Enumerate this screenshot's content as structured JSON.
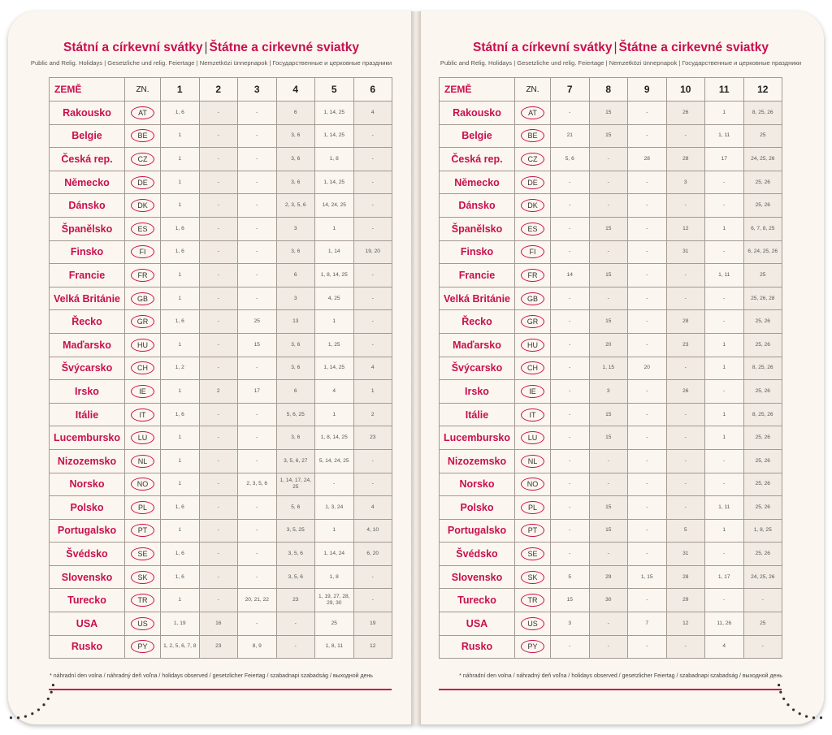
{
  "left": {
    "title_cz": "Státní a církevní svátky",
    "title_sk": "Štátne a cirkevné sviatky",
    "subtitle": "Public and Relig. Holidays | Gesetzliche und relig. Feiertage | Nemzetközi ünnepnapok | Государственные и церковные праздники",
    "header": {
      "country": "ZEMĚ",
      "code": "ZN.",
      "months": [
        "1",
        "2",
        "3",
        "4",
        "5",
        "6"
      ]
    },
    "footnote": "* náhradní den volna / náhradný deň voľna / holidays observed / gesetzlicher Feiertag / szabadnapi szabadság / выходной день"
  },
  "right": {
    "title_cz": "Státní a církevní svátky",
    "title_sk": "Štátne a cirkevné sviatky",
    "subtitle": "Public and Relig. Holidays | Gesetzliche und relig. Feiertage | Nemzetközi ünnepnapok | Государственные и церковные праздники",
    "header": {
      "country": "ZEMĚ",
      "code": "ZN.",
      "months": [
        "7",
        "8",
        "9",
        "10",
        "11",
        "12"
      ]
    },
    "footnote": "* náhradní den volna / náhradný deň voľna / holidays observed / gesetzlicher Feiertag / szabadnapi szabadság / выходной день"
  },
  "colors": {
    "accent": "#c8104f",
    "page": "#fbf6ef",
    "shade": "#f1ebe3",
    "border": "#a39a92"
  },
  "countries": [
    {
      "name": "Rakousko",
      "code": "AT",
      "m": [
        "1, 6",
        "-",
        "-",
        "6",
        "1, 14, 25",
        "4",
        "-",
        "15",
        "-",
        "26",
        "1",
        "8, 25, 26"
      ]
    },
    {
      "name": "Belgie",
      "code": "BE",
      "m": [
        "1",
        "-",
        "-",
        "3, 6",
        "1, 14, 25",
        "-",
        "21",
        "15",
        "-",
        "-",
        "1, 11",
        "25"
      ]
    },
    {
      "name": "Česká rep.",
      "code": "CZ",
      "m": [
        "1",
        "-",
        "-",
        "3, 6",
        "1, 8",
        "-",
        "5, 6",
        "-",
        "28",
        "28",
        "17",
        "24, 25, 26"
      ]
    },
    {
      "name": "Německo",
      "code": "DE",
      "m": [
        "1",
        "-",
        "-",
        "3, 6",
        "1, 14, 25",
        "-",
        "-",
        "-",
        "-",
        "3",
        "-",
        "25, 26"
      ]
    },
    {
      "name": "Dánsko",
      "code": "DK",
      "m": [
        "1",
        "-",
        "-",
        "2, 3, 5, 6",
        "14, 24, 25",
        "-",
        "-",
        "-",
        "-",
        "-",
        "-",
        "25, 26"
      ]
    },
    {
      "name": "Španělsko",
      "code": "ES",
      "m": [
        "1, 6",
        "-",
        "-",
        "3",
        "1",
        "-",
        "-",
        "15",
        "-",
        "12",
        "1",
        "6, 7, 8, 25"
      ]
    },
    {
      "name": "Finsko",
      "code": "FI",
      "m": [
        "1, 6",
        "-",
        "-",
        "3, 6",
        "1, 14",
        "19, 20",
        "-",
        "-",
        "-",
        "31",
        "-",
        "6, 24, 25, 26"
      ]
    },
    {
      "name": "Francie",
      "code": "FR",
      "m": [
        "1",
        "-",
        "-",
        "6",
        "1, 8, 14, 25",
        "-",
        "14",
        "15",
        "-",
        "-",
        "1, 11",
        "25"
      ]
    },
    {
      "name": "Velká Británie",
      "code": "GB",
      "m": [
        "1",
        "-",
        "-",
        "3",
        "4, 25",
        "-",
        "-",
        "-",
        "-",
        "-",
        "-",
        "25, 26, 28"
      ]
    },
    {
      "name": "Řecko",
      "code": "GR",
      "m": [
        "1, 6",
        "-",
        "25",
        "13",
        "1",
        "-",
        "-",
        "15",
        "-",
        "28",
        "-",
        "25, 26"
      ]
    },
    {
      "name": "Maďarsko",
      "code": "HU",
      "m": [
        "1",
        "-",
        "15",
        "3, 6",
        "1, 25",
        "-",
        "-",
        "20",
        "-",
        "23",
        "1",
        "25, 26"
      ]
    },
    {
      "name": "Švýcarsko",
      "code": "CH",
      "m": [
        "1, 2",
        "-",
        "-",
        "3, 6",
        "1, 14, 25",
        "4",
        "-",
        "1, 15",
        "20",
        "-",
        "1",
        "8, 25, 26"
      ]
    },
    {
      "name": "Irsko",
      "code": "IE",
      "m": [
        "1",
        "2",
        "17",
        "6",
        "4",
        "1",
        "-",
        "3",
        "-",
        "26",
        "-",
        "25, 26"
      ]
    },
    {
      "name": "Itálie",
      "code": "IT",
      "m": [
        "1, 6",
        "-",
        "-",
        "5, 6, 25",
        "1",
        "2",
        "-",
        "15",
        "-",
        "-",
        "1",
        "8, 25, 26"
      ]
    },
    {
      "name": "Lucembursko",
      "code": "LU",
      "m": [
        "1",
        "-",
        "-",
        "3, 6",
        "1, 8, 14, 25",
        "23",
        "-",
        "15",
        "-",
        "-",
        "1",
        "25, 26"
      ]
    },
    {
      "name": "Nizozemsko",
      "code": "NL",
      "m": [
        "1",
        "-",
        "-",
        "3, 5, 6, 27",
        "5, 14, 24, 25",
        "-",
        "-",
        "-",
        "-",
        "-",
        "-",
        "25, 26"
      ]
    },
    {
      "name": "Norsko",
      "code": "NO",
      "m": [
        "1",
        "-",
        "2, 3, 5, 6",
        "1, 14, 17, 24, 25",
        "-",
        "-",
        "-",
        "-",
        "-",
        "-",
        "-",
        "25, 26"
      ]
    },
    {
      "name": "Polsko",
      "code": "PL",
      "m": [
        "1, 6",
        "-",
        "-",
        "5, 6",
        "1, 3, 24",
        "4",
        "-",
        "15",
        "-",
        "-",
        "1, 11",
        "25, 26"
      ]
    },
    {
      "name": "Portugalsko",
      "code": "PT",
      "m": [
        "1",
        "-",
        "-",
        "3, 5, 25",
        "1",
        "4, 10",
        "-",
        "15",
        "-",
        "5",
        "1",
        "1, 8, 25"
      ]
    },
    {
      "name": "Švédsko",
      "code": "SE",
      "m": [
        "1, 6",
        "-",
        "-",
        "3, 5, 6",
        "1, 14, 24",
        "6, 20",
        "-",
        "-",
        "-",
        "31",
        "-",
        "25, 26"
      ]
    },
    {
      "name": "Slovensko",
      "code": "SK",
      "m": [
        "1, 6",
        "-",
        "-",
        "3, 5, 6",
        "1, 8",
        "-",
        "5",
        "29",
        "1, 15",
        "28",
        "1, 17",
        "24, 25, 26"
      ]
    },
    {
      "name": "Turecko",
      "code": "TR",
      "m": [
        "1",
        "-",
        "20, 21, 22",
        "23",
        "1, 19, 27, 28, 29, 30",
        "-",
        "15",
        "30",
        "-",
        "29",
        "-",
        "-"
      ]
    },
    {
      "name": "USA",
      "code": "US",
      "m": [
        "1, 19",
        "16",
        "-",
        "-",
        "25",
        "19",
        "3",
        "-",
        "7",
        "12",
        "11, 26",
        "25"
      ]
    },
    {
      "name": "Rusko",
      "code": "PY",
      "m": [
        "1, 2, 5, 6, 7, 8",
        "23",
        "8, 9",
        "-",
        "1, 8, 11",
        "12",
        "-",
        "-",
        "-",
        "-",
        "4",
        "-"
      ]
    }
  ]
}
